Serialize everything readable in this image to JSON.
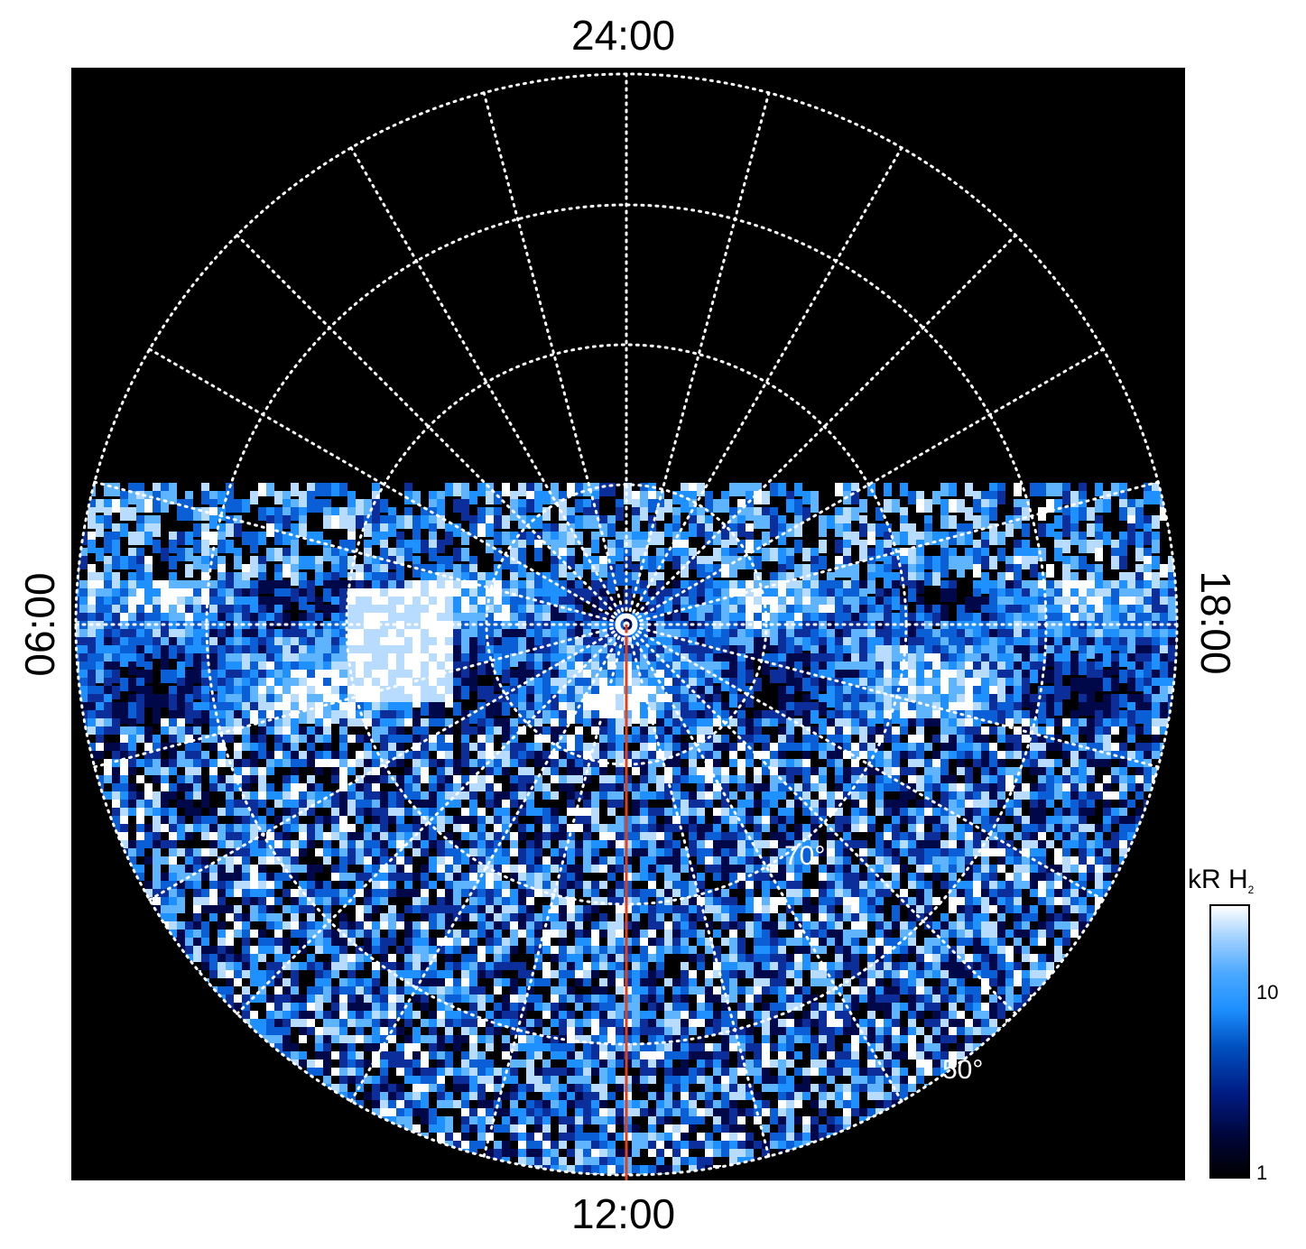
{
  "chart_data": {
    "type": "heatmap",
    "projection": "polar",
    "local_time_labels": {
      "top": "24:00",
      "bottom": "12:00",
      "left": "06:00",
      "right": "18:00"
    },
    "latitude_labels": [
      "70°",
      "50°"
    ],
    "colorbar": {
      "title": "kR H",
      "title_sub": "2",
      "scale": "log",
      "ticks": [
        "10",
        "1"
      ],
      "range": [
        1,
        20
      ]
    },
    "colors": {
      "background": "#000000",
      "grid": "#ffffff",
      "meridian_line": "#e0401a",
      "low": "#000000",
      "mid": "#1e90ff",
      "high": "#ffffff"
    }
  }
}
